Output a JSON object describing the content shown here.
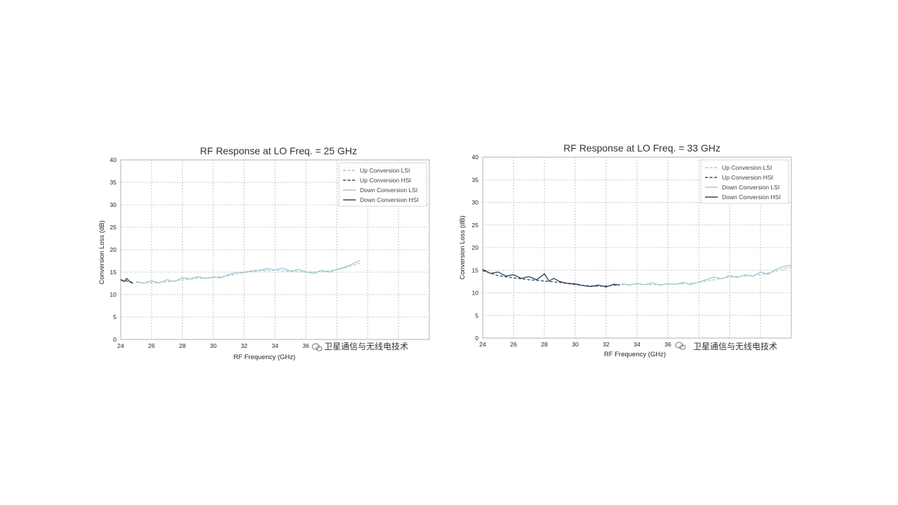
{
  "chart_data": [
    {
      "type": "line",
      "title": "RF Response at LO Freq. = 25 GHz",
      "xlabel": "RF Frequency (GHz)",
      "ylabel": "Conversion Loss (dB)",
      "xlim": [
        24,
        44
      ],
      "ylim": [
        0,
        40
      ],
      "xticks": [
        "24",
        "26",
        "28",
        "30",
        "32",
        "34",
        "36",
        "38",
        "40",
        "42",
        "44"
      ],
      "xticks_visible": [
        "24",
        "26",
        "28",
        "30",
        "32",
        "34",
        "36"
      ],
      "yticks": [
        "0",
        "5",
        "10",
        "15",
        "20",
        "25",
        "30",
        "35",
        "40"
      ],
      "grid": true,
      "legend_position": "top-right",
      "series": [
        {
          "name": "Up Conversion LSI",
          "style": "dashed",
          "color": "#a9c9d2",
          "x": [
            25.0,
            26.0,
            27.0,
            28.0,
            29.0,
            30.0,
            31.0,
            32.0,
            33.0,
            34.0,
            35.0,
            36.0,
            37.0,
            38.0,
            38.8,
            39.5
          ],
          "y": [
            12.7,
            12.6,
            12.8,
            13.3,
            13.6,
            13.8,
            14.2,
            14.9,
            15.3,
            15.4,
            15.2,
            15.0,
            15.1,
            15.5,
            16.2,
            17.0
          ]
        },
        {
          "name": "Up Conversion HSI",
          "style": "dashed",
          "color": "#34495e",
          "x": [
            24.0,
            24.4,
            24.8
          ],
          "y": [
            13.2,
            13.0,
            12.7
          ]
        },
        {
          "name": "Down Conversion LSI",
          "style": "solid",
          "color": "#a9c9d2",
          "x": [
            25.0,
            25.5,
            26.0,
            26.5,
            27.0,
            27.5,
            28.0,
            28.5,
            29.0,
            29.5,
            30.0,
            30.5,
            31.0,
            31.5,
            32.0,
            32.5,
            33.0,
            33.5,
            34.0,
            34.5,
            35.0,
            35.5,
            36.0,
            36.5,
            37.0,
            37.5,
            38.0,
            38.5,
            39.0,
            39.5
          ],
          "y": [
            12.9,
            12.5,
            13.1,
            12.6,
            13.3,
            12.9,
            13.8,
            13.5,
            14.0,
            13.6,
            13.9,
            13.7,
            14.5,
            14.9,
            15.0,
            15.3,
            15.4,
            15.8,
            15.5,
            15.9,
            15.2,
            15.6,
            15.1,
            14.7,
            15.4,
            15.0,
            15.6,
            16.1,
            16.8,
            17.6
          ]
        },
        {
          "name": "Down Conversion HSI",
          "style": "solid",
          "color": "#34495e",
          "x": [
            24.0,
            24.2,
            24.4,
            24.6,
            24.8
          ],
          "y": [
            13.4,
            12.9,
            13.6,
            12.8,
            12.5
          ]
        }
      ]
    },
    {
      "type": "line",
      "title": "RF Response at LO Freq. = 33 GHz",
      "xlabel": "RF Frequency (GHz)",
      "ylabel": "Conversion Loss (dB)",
      "xlim": [
        24,
        44
      ],
      "ylim": [
        0,
        40
      ],
      "xticks": [
        "24",
        "26",
        "28",
        "30",
        "32",
        "34",
        "36",
        "38",
        "40",
        "42",
        "44"
      ],
      "xticks_visible": [
        "24",
        "26",
        "28",
        "30",
        "32",
        "34",
        "36"
      ],
      "yticks": [
        "0",
        "5",
        "10",
        "15",
        "20",
        "25",
        "30",
        "35",
        "40"
      ],
      "grid": true,
      "legend_position": "top-right",
      "series": [
        {
          "name": "Up Conversion LSI",
          "style": "dashed",
          "color": "#a9c9d2",
          "x": [
            33.0,
            34.0,
            35.0,
            36.0,
            37.0,
            38.0,
            39.0,
            40.0,
            41.0,
            42.0,
            43.0,
            44.0
          ],
          "y": [
            11.8,
            11.9,
            11.8,
            11.9,
            12.0,
            12.3,
            12.9,
            13.5,
            13.7,
            14.0,
            14.8,
            15.7
          ]
        },
        {
          "name": "Up Conversion HSI",
          "style": "dashed",
          "color": "#34495e",
          "x": [
            24.0,
            25.0,
            26.0,
            27.0,
            28.0,
            29.0,
            30.0,
            31.0,
            32.0,
            32.8
          ],
          "y": [
            14.9,
            13.8,
            13.3,
            12.9,
            12.6,
            12.3,
            11.8,
            11.5,
            11.5,
            11.8
          ]
        },
        {
          "name": "Down Conversion LSI",
          "style": "solid",
          "color": "#a9c9d2",
          "x": [
            33.0,
            33.5,
            34.0,
            34.5,
            35.0,
            35.5,
            36.0,
            36.5,
            37.0,
            37.5,
            38.0,
            38.5,
            39.0,
            39.5,
            40.0,
            40.5,
            41.0,
            41.5,
            42.0,
            42.5,
            43.0,
            43.5,
            44.0
          ],
          "y": [
            12.0,
            11.7,
            12.1,
            11.8,
            12.2,
            11.7,
            12.0,
            11.9,
            12.3,
            11.8,
            12.4,
            12.9,
            13.5,
            13.1,
            13.8,
            13.4,
            14.0,
            13.6,
            14.6,
            14.1,
            15.2,
            15.8,
            16.1
          ]
        },
        {
          "name": "Down Conversion HSI",
          "style": "solid",
          "color": "#34495e",
          "x": [
            24.0,
            24.5,
            25.0,
            25.5,
            26.0,
            26.5,
            27.0,
            27.5,
            28.0,
            28.3,
            28.6,
            29.0,
            29.5,
            30.0,
            30.5,
            31.0,
            31.5,
            32.0,
            32.5,
            32.9
          ],
          "y": [
            15.2,
            14.3,
            14.6,
            13.7,
            14.0,
            13.2,
            13.6,
            12.9,
            14.2,
            12.6,
            13.2,
            12.5,
            12.1,
            12.0,
            11.6,
            11.4,
            11.7,
            11.3,
            11.9,
            11.7
          ]
        }
      ]
    }
  ],
  "watermark": "卫星通信与无线电技术",
  "watermark_icon": "wechat-icon"
}
